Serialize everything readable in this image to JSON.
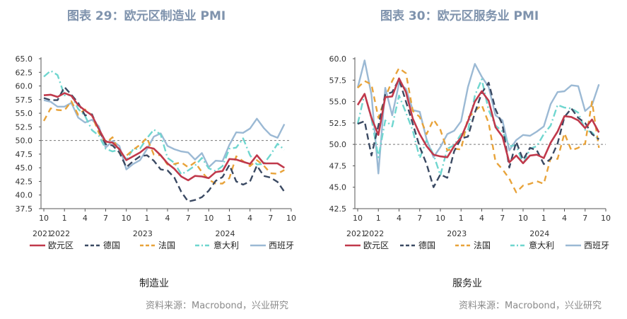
{
  "figures": {
    "left_title": "图表 29：欧元区制造业 PMI",
    "right_title": "图表 30：欧元区服务业 PMI",
    "left_caption": "制造业",
    "right_caption": "服务业",
    "source": "资料来源：Macrobond，兴业研究"
  },
  "colors": {
    "欧元区": "#c0394b",
    "德国": "#3b4a63",
    "法国": "#e8a33a",
    "意大利": "#6fd6cf",
    "西班牙": "#9bb9d4"
  },
  "chart_data": [
    {
      "type": "line",
      "title": "图表 29：欧元区制造业 PMI",
      "xlabel": "制造业",
      "ylim": [
        37.5,
        65.0
      ],
      "yticks": [
        "65.0",
        "62.5",
        "60.0",
        "57.5",
        "55.0",
        "52.5",
        "50.0",
        "47.5",
        "45.0",
        "42.5",
        "40.0",
        "37.5"
      ],
      "xtick_labels": [
        "10",
        "1",
        "4",
        "7",
        "10",
        "1",
        "4",
        "7",
        "10",
        "1",
        "4",
        "7",
        "10"
      ],
      "year_labels": [
        "2021",
        "2022",
        "2023",
        "2024"
      ],
      "reference_line": 50.0,
      "legend_position": "bottom",
      "x_months": [
        "2021-10",
        "2021-11",
        "2021-12",
        "2022-01",
        "2022-02",
        "2022-03",
        "2022-04",
        "2022-05",
        "2022-06",
        "2022-07",
        "2022-08",
        "2022-09",
        "2022-10",
        "2022-11",
        "2022-12",
        "2023-01",
        "2023-02",
        "2023-03",
        "2023-04",
        "2023-05",
        "2023-06",
        "2023-07",
        "2023-08",
        "2023-09",
        "2023-10",
        "2023-11",
        "2023-12",
        "2024-01",
        "2024-02",
        "2024-03",
        "2024-04",
        "2024-05",
        "2024-06",
        "2024-07",
        "2024-08",
        "2024-09"
      ],
      "series": [
        {
          "name": "欧元区",
          "values": [
            58.3,
            58.4,
            58.0,
            58.7,
            58.2,
            56.5,
            55.5,
            54.6,
            52.1,
            49.8,
            49.6,
            48.4,
            46.4,
            47.1,
            47.8,
            48.8,
            48.5,
            47.3,
            45.8,
            44.8,
            43.4,
            42.7,
            43.5,
            43.4,
            43.1,
            44.2,
            44.4,
            46.6,
            46.5,
            46.1,
            45.7,
            47.3,
            45.8,
            45.8,
            45.8,
            45.0
          ]
        },
        {
          "name": "德国",
          "values": [
            57.8,
            57.4,
            57.4,
            59.8,
            58.4,
            56.9,
            54.6,
            54.8,
            52.0,
            49.3,
            49.1,
            47.8,
            45.1,
            46.2,
            47.1,
            47.3,
            46.3,
            44.7,
            44.5,
            43.2,
            40.6,
            38.8,
            39.1,
            39.6,
            40.8,
            42.6,
            43.3,
            45.5,
            42.5,
            41.9,
            42.5,
            45.4,
            43.5,
            43.2,
            42.4,
            40.6
          ]
        },
        {
          "name": "法国",
          "values": [
            53.6,
            55.9,
            55.6,
            55.5,
            57.2,
            54.7,
            55.7,
            54.6,
            51.4,
            49.5,
            50.6,
            47.7,
            47.2,
            48.3,
            49.2,
            50.5,
            47.4,
            47.3,
            45.6,
            45.7,
            46.0,
            45.1,
            46.0,
            44.2,
            42.8,
            42.1,
            42.1,
            43.1,
            47.1,
            46.2,
            45.3,
            46.4,
            45.4,
            44.0,
            43.9,
            44.6
          ]
        },
        {
          "name": "意大利",
          "values": [
            61.7,
            62.8,
            62.0,
            58.3,
            58.3,
            55.8,
            54.5,
            51.9,
            50.9,
            48.5,
            48.0,
            48.3,
            46.5,
            48.4,
            48.5,
            50.4,
            52.0,
            51.1,
            46.8,
            45.9,
            43.8,
            44.5,
            45.4,
            46.8,
            44.9,
            44.4,
            45.3,
            48.5,
            48.7,
            50.4,
            47.3,
            45.6,
            45.7,
            47.4,
            49.4,
            48.3
          ]
        },
        {
          "name": "西班牙",
          "values": [
            57.4,
            57.1,
            56.2,
            56.2,
            56.9,
            54.2,
            53.3,
            53.8,
            52.6,
            48.7,
            49.9,
            49.0,
            44.7,
            45.7,
            46.4,
            48.4,
            50.7,
            51.3,
            49.0,
            48.4,
            48.0,
            47.8,
            46.5,
            47.7,
            45.1,
            46.3,
            46.2,
            49.2,
            51.5,
            51.4,
            52.2,
            54.0,
            52.3,
            51.0,
            50.5,
            53.0
          ]
        }
      ]
    },
    {
      "type": "line",
      "title": "图表 30：欧元区服务业 PMI",
      "xlabel": "服务业",
      "ylim": [
        42.5,
        60.0
      ],
      "yticks": [
        "60.0",
        "57.5",
        "55.0",
        "52.5",
        "50.0",
        "47.5",
        "45.0",
        "42.5"
      ],
      "xtick_labels": [
        "10",
        "1",
        "4",
        "7",
        "10",
        "1",
        "4",
        "7",
        "10",
        "1",
        "4",
        "7",
        "10"
      ],
      "year_labels": [
        "2021",
        "2022",
        "2023",
        "2024"
      ],
      "reference_line": 50.0,
      "legend_position": "bottom",
      "x_months": [
        "2021-10",
        "2021-11",
        "2021-12",
        "2022-01",
        "2022-02",
        "2022-03",
        "2022-04",
        "2022-05",
        "2022-06",
        "2022-07",
        "2022-08",
        "2022-09",
        "2022-10",
        "2022-11",
        "2022-12",
        "2023-01",
        "2023-02",
        "2023-03",
        "2023-04",
        "2023-05",
        "2023-06",
        "2023-07",
        "2023-08",
        "2023-09",
        "2023-10",
        "2023-11",
        "2023-12",
        "2024-01",
        "2024-02",
        "2024-03",
        "2024-04",
        "2024-05",
        "2024-06",
        "2024-07",
        "2024-08",
        "2024-09"
      ],
      "series": [
        {
          "name": "欧元区",
          "values": [
            54.6,
            55.9,
            53.1,
            51.1,
            55.5,
            55.6,
            57.7,
            56.1,
            53.0,
            51.2,
            49.8,
            48.8,
            48.6,
            48.5,
            49.8,
            50.8,
            52.7,
            55.0,
            56.2,
            55.1,
            52.0,
            50.9,
            47.9,
            48.7,
            47.8,
            48.7,
            48.8,
            48.4,
            50.2,
            51.5,
            53.3,
            53.2,
            52.8,
            51.9,
            52.9,
            51.4
          ]
        },
        {
          "name": "德国",
          "values": [
            52.4,
            52.7,
            48.7,
            52.2,
            55.8,
            56.1,
            57.6,
            55.0,
            52.4,
            49.7,
            47.7,
            45.0,
            46.5,
            46.1,
            49.2,
            50.7,
            50.9,
            53.7,
            56.0,
            57.2,
            54.1,
            52.3,
            47.3,
            50.3,
            48.2,
            49.6,
            49.3,
            47.7,
            48.3,
            50.1,
            53.2,
            54.2,
            53.1,
            52.5,
            51.2,
            50.6
          ]
        },
        {
          "name": "法国",
          "values": [
            56.6,
            57.4,
            57.0,
            53.1,
            55.5,
            57.4,
            58.9,
            58.3,
            53.9,
            53.2,
            51.2,
            52.9,
            51.7,
            49.3,
            49.5,
            49.4,
            53.1,
            53.9,
            54.6,
            52.5,
            48.0,
            47.1,
            46.0,
            44.4,
            45.2,
            45.4,
            45.7,
            45.4,
            48.4,
            48.3,
            51.3,
            49.3,
            49.6,
            50.1,
            55.0,
            49.6
          ]
        },
        {
          "name": "意大利",
          "values": [
            52.4,
            55.9,
            53.0,
            48.5,
            52.8,
            52.1,
            55.7,
            53.7,
            51.6,
            48.4,
            50.5,
            48.8,
            46.4,
            49.5,
            49.9,
            51.2,
            51.6,
            55.7,
            57.6,
            54.0,
            52.2,
            51.5,
            49.8,
            49.9,
            47.7,
            49.5,
            49.8,
            51.2,
            52.2,
            54.6,
            54.3,
            54.2,
            53.7,
            51.7,
            51.4,
            50.5
          ]
        },
        {
          "name": "西班牙",
          "values": [
            56.6,
            59.8,
            55.8,
            46.6,
            56.6,
            53.4,
            57.1,
            56.5,
            54.0,
            53.8,
            50.6,
            48.5,
            49.7,
            51.2,
            51.6,
            52.7,
            56.7,
            59.4,
            57.9,
            56.7,
            53.4,
            52.8,
            49.3,
            50.5,
            51.1,
            51.0,
            51.5,
            52.1,
            54.7,
            56.1,
            56.2,
            56.9,
            56.8,
            53.9,
            54.6,
            57.0
          ]
        }
      ]
    }
  ]
}
